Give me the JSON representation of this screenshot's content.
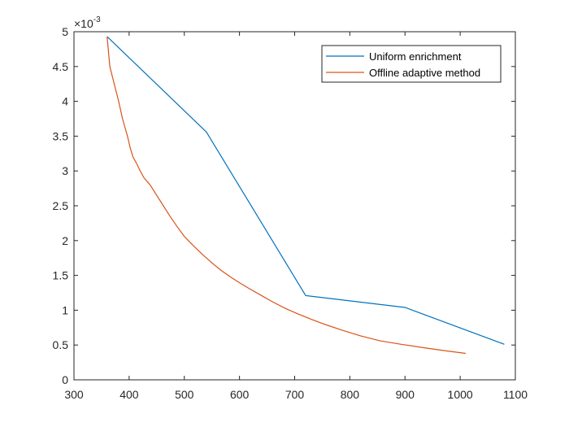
{
  "chart_data": {
    "type": "line",
    "title": "",
    "xlabel": "",
    "ylabel": "",
    "xlim": [
      300,
      1100
    ],
    "ylim": [
      0,
      0.005
    ],
    "xticks": [
      300,
      400,
      500,
      600,
      700,
      800,
      900,
      1000,
      1100
    ],
    "xtick_labels": [
      "300",
      "400",
      "500",
      "600",
      "700",
      "800",
      "900",
      "1000",
      "1100"
    ],
    "yticks": [
      0,
      0.0005,
      0.001,
      0.0015,
      0.002,
      0.0025,
      0.003,
      0.0035,
      0.004,
      0.0045,
      0.005
    ],
    "ytick_labels": [
      "0",
      "0.5",
      "1",
      "1.5",
      "2",
      "2.5",
      "3",
      "3.5",
      "4",
      "4.5",
      "5"
    ],
    "y_exponent_label": {
      "base": "×10",
      "exponent": "-3"
    },
    "grid": false,
    "legend": {
      "position": "top-right"
    },
    "series": [
      {
        "name": "Uniform enrichment",
        "color": "#0072BD",
        "x": [
          360,
          540,
          720,
          900,
          1080
        ],
        "y": [
          0.00493,
          0.00356,
          0.00121,
          0.00104,
          0.00051
        ]
      },
      {
        "name": "Offline adaptive method",
        "color": "#D95319",
        "x": [
          360,
          365,
          372,
          381,
          388,
          397,
          402,
          407,
          414,
          420,
          427,
          438,
          450,
          462,
          474,
          487,
          500,
          516,
          533,
          550,
          567,
          585,
          603,
          620,
          640,
          660,
          682,
          705,
          730,
          757,
          787,
          820,
          855,
          893,
          935,
          980,
          1010
        ],
        "y": [
          0.00493,
          0.0045,
          0.00428,
          0.004,
          0.00375,
          0.0035,
          0.00333,
          0.0032,
          0.0031,
          0.003,
          0.0029,
          0.0028,
          0.00265,
          0.0025,
          0.00235,
          0.0022,
          0.00206,
          0.00193,
          0.0018,
          0.00168,
          0.00157,
          0.00147,
          0.00138,
          0.0013,
          0.00121,
          0.00112,
          0.00103,
          0.00095,
          0.00087,
          0.00079,
          0.00071,
          0.00063,
          0.00056,
          0.00051,
          0.00046,
          0.00041,
          0.00038
        ]
      }
    ]
  }
}
